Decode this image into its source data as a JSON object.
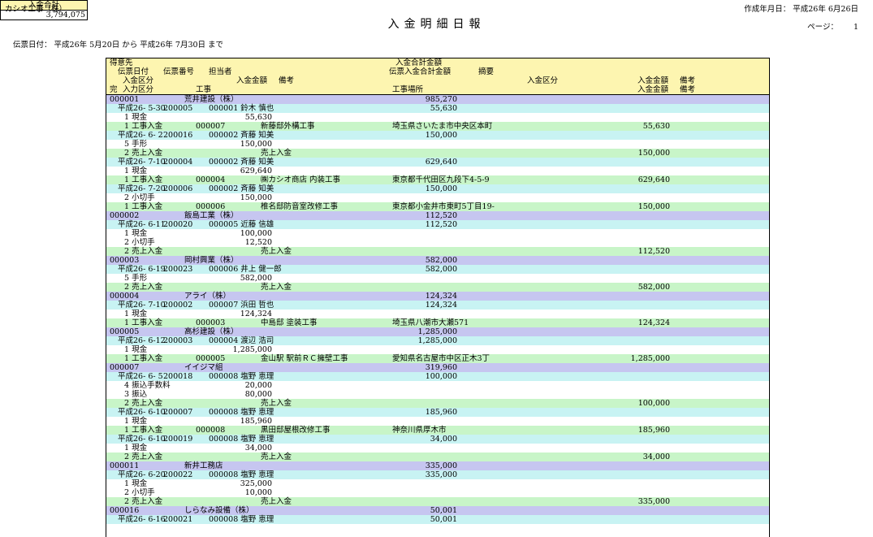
{
  "report": {
    "company": "カシオ工事（株）",
    "title": "入金明細日報",
    "created_label": "作成年月日：",
    "created_date": "平成26年 6月26日",
    "page_label": "ページ：",
    "page_number": "1",
    "date_range": "伝票日付：  平成26年 5月20日 から 平成26年 7月30日 まで",
    "total_label": "入金合計",
    "total_value": "3,794,075"
  },
  "header": {
    "customer": "得意先",
    "customer_amount": "入金合計金額",
    "slip_date": "伝票日付",
    "slip_no": "伝票番号",
    "staff": "担当者",
    "slip_amount": "伝票入金合計金額",
    "summary": "摘要",
    "type": "入金区分",
    "amount": "入金金額",
    "note": "備考",
    "type2": "入金区分",
    "amount2": "入金金額",
    "note2": "備考",
    "done": "完",
    "input_type": "入力区分",
    "work": "工事",
    "site": "工事場所",
    "amount3": "入金金額",
    "note3": "備考"
  },
  "customers": [
    {
      "code": "000001",
      "name": "荒井建設（株）",
      "total": "985,270",
      "slips": [
        {
          "date": "平成26- 5-30",
          "no": "200005",
          "staff": "000001 鈴木  慎也",
          "amount": "55,630",
          "payments": [
            {
              "type": "1 現金",
              "amount": "55,630"
            }
          ],
          "inputs": [
            {
              "kind": "1 工事入金",
              "code": "000007",
              "work": "新藤邸外構工事",
              "site": "埼玉県さいたま市中央区本町",
              "amount": "55,630"
            }
          ]
        },
        {
          "date": "平成26- 6- 2",
          "no": "200016",
          "staff": "000002 斉藤  知美",
          "amount": "150,000",
          "payments": [
            {
              "type": "5 手形",
              "amount": "150,000"
            }
          ],
          "inputs": [
            {
              "kind": "2 売上入金",
              "code": "",
              "work": "売上入金",
              "site": "",
              "amount": "150,000"
            }
          ]
        },
        {
          "date": "平成26- 7-10",
          "no": "200004",
          "staff": "000002 斉藤  知美",
          "amount": "629,640",
          "payments": [
            {
              "type": "1 現金",
              "amount": "629,640"
            }
          ],
          "inputs": [
            {
              "kind": "1 工事入金",
              "code": "000004",
              "work": "㈱カシオ商店  内装工事",
              "site": "東京都千代田区九段下4-5-9",
              "amount": "629,640"
            }
          ]
        },
        {
          "date": "平成26- 7-20",
          "no": "200006",
          "staff": "000002 斉藤  知美",
          "amount": "150,000",
          "payments": [
            {
              "type": "2 小切手",
              "amount": "150,000"
            }
          ],
          "inputs": [
            {
              "kind": "1 工事入金",
              "code": "000006",
              "work": "椎名邸防音室改修工事",
              "site": "東京都小金井市東町5丁目19-",
              "amount": "150,000"
            }
          ]
        }
      ]
    },
    {
      "code": "000002",
      "name": "飯島工業（株）",
      "total": "112,520",
      "slips": [
        {
          "date": "平成26- 6-11",
          "no": "200020",
          "staff": "000005 近藤  信雄",
          "amount": "112,520",
          "payments": [
            {
              "type": "1 現金",
              "amount": "100,000"
            },
            {
              "type": "2 小切手",
              "amount": "12,520"
            }
          ],
          "inputs": [
            {
              "kind": "2 売上入金",
              "code": "",
              "work": "売上入金",
              "site": "",
              "amount": "112,520"
            }
          ]
        }
      ]
    },
    {
      "code": "000003",
      "name": "岡村興業（株）",
      "total": "582,000",
      "slips": [
        {
          "date": "平成26- 6-19",
          "no": "200023",
          "staff": "000006 井上  健一郎",
          "amount": "582,000",
          "payments": [
            {
              "type": "5 手形",
              "amount": "582,000"
            }
          ],
          "inputs": [
            {
              "kind": "2 売上入金",
              "code": "",
              "work": "売上入金",
              "site": "",
              "amount": "582,000"
            }
          ]
        }
      ]
    },
    {
      "code": "000004",
      "name": "アライ（株）",
      "total": "124,324",
      "slips": [
        {
          "date": "平成26- 7-10",
          "no": "200002",
          "staff": "000007 浜田  哲也",
          "amount": "124,324",
          "payments": [
            {
              "type": "1 現金",
              "amount": "124,324"
            }
          ],
          "inputs": [
            {
              "kind": "1 工事入金",
              "code": "000003",
              "work": "中島邸  塗装工事",
              "site": "埼玉県八潮市大瀬571",
              "amount": "124,324"
            }
          ]
        }
      ]
    },
    {
      "code": "000005",
      "name": "高杉建設（株）",
      "total": "1,285,000",
      "slips": [
        {
          "date": "平成26- 6-12",
          "no": "200003",
          "staff": "000004 渡辺  浩司",
          "amount": "1,285,000",
          "payments": [
            {
              "type": "1 現金",
              "amount": "1,285,000"
            }
          ],
          "inputs": [
            {
              "kind": "1 工事入金",
              "code": "000005",
              "work": "金山駅  駅前ＲＣ擁壁工事",
              "site": "愛知県名古屋市中区正木3丁",
              "amount": "1,285,000"
            }
          ]
        }
      ]
    },
    {
      "code": "000007",
      "name": "イイジマ組",
      "total": "319,960",
      "slips": [
        {
          "date": "平成26- 6- 5",
          "no": "200018",
          "staff": "000008 塩野  恵理",
          "amount": "100,000",
          "payments": [
            {
              "type": "4 振込手数料",
              "amount": "20,000"
            },
            {
              "type": "3 振込",
              "amount": "80,000"
            }
          ],
          "inputs": [
            {
              "kind": "2 売上入金",
              "code": "",
              "work": "売上入金",
              "site": "",
              "amount": "100,000"
            }
          ]
        },
        {
          "date": "平成26- 6-10",
          "no": "200007",
          "staff": "000008 塩野  恵理",
          "amount": "185,960",
          "payments": [
            {
              "type": "1 現金",
              "amount": "185,960"
            }
          ],
          "inputs": [
            {
              "kind": "1 工事入金",
              "code": "000008",
              "work": "黒田邸屋根改修工事",
              "site": "神奈川県厚木市",
              "amount": "185,960"
            }
          ]
        },
        {
          "date": "平成26- 6-10",
          "no": "200019",
          "staff": "000008 塩野  恵理",
          "amount": "34,000",
          "payments": [
            {
              "type": "1 現金",
              "amount": "34,000"
            }
          ],
          "inputs": [
            {
              "kind": "2 売上入金",
              "code": "",
              "work": "売上入金",
              "site": "",
              "amount": "34,000"
            }
          ]
        }
      ]
    },
    {
      "code": "000011",
      "name": "新井工務店",
      "total": "335,000",
      "slips": [
        {
          "date": "平成26- 6-20",
          "no": "200022",
          "staff": "000008 塩野  恵理",
          "amount": "335,000",
          "payments": [
            {
              "type": "1 現金",
              "amount": "325,000"
            },
            {
              "type": "2 小切手",
              "amount": "10,000"
            }
          ],
          "inputs": [
            {
              "kind": "2 売上入金",
              "code": "",
              "work": "売上入金",
              "site": "",
              "amount": "335,000"
            }
          ]
        }
      ]
    },
    {
      "code": "000016",
      "name": "しらなみ設備（株）",
      "total": "50,001",
      "slips": [
        {
          "date": "平成26- 6-16",
          "no": "200021",
          "staff": "000008 塩野  恵理",
          "amount": "50,001",
          "payments": [],
          "inputs": []
        }
      ]
    }
  ]
}
